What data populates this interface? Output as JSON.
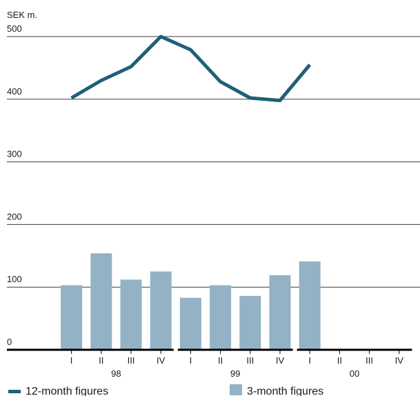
{
  "chart_data": {
    "type": "bar",
    "unit_label": "SEK m.",
    "y_ticks": [
      0,
      100,
      200,
      300,
      400,
      500
    ],
    "ylim": [
      0,
      500
    ],
    "grid": true,
    "quarters": [
      "I",
      "II",
      "III",
      "IV",
      "I",
      "II",
      "III",
      "IV",
      "I",
      "II",
      "III",
      "IV"
    ],
    "year_groups": [
      {
        "label": "98",
        "start": 0,
        "end": 3
      },
      {
        "label": "99",
        "start": 4,
        "end": 7
      },
      {
        "label": "00",
        "start": 8,
        "end": 11
      }
    ],
    "series": [
      {
        "name": "12-month figures",
        "type": "line",
        "color": "#1f5f78",
        "values": [
          402,
          430,
          452,
          500,
          479,
          428,
          402,
          398,
          455,
          null,
          null,
          null
        ]
      },
      {
        "name": "3-month figures",
        "type": "bar",
        "color": "#93b2c6",
        "values": [
          103,
          154,
          112,
          125,
          83,
          103,
          86,
          119,
          141,
          null,
          null,
          null
        ]
      }
    ],
    "legend_placement": "bottom"
  }
}
